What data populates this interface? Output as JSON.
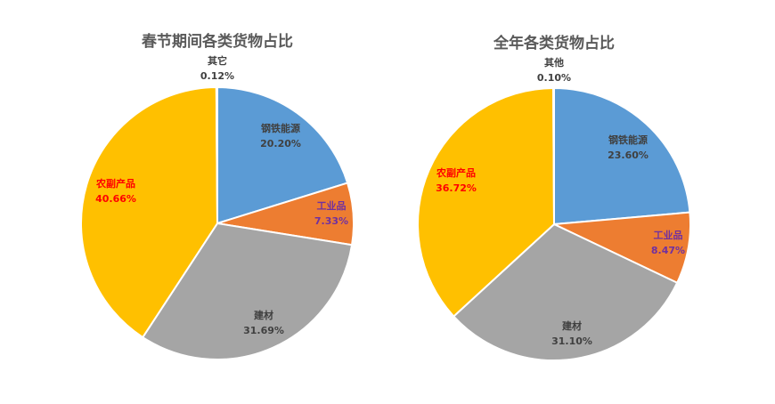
{
  "chart_data": [
    {
      "type": "pie",
      "title": "春节期间各类货物占比",
      "slices": [
        {
          "label": "钢铁能源",
          "value": 20.2,
          "display": "20.20%",
          "color": "#5B9BD5",
          "label_color": "#404040"
        },
        {
          "label": "工业品",
          "value": 7.33,
          "display": "7.33%",
          "color": "#ED7D31",
          "label_color": "#7030A0"
        },
        {
          "label": "建材",
          "value": 31.69,
          "display": "31.69%",
          "color": "#A5A5A5",
          "label_color": "#404040"
        },
        {
          "label": "农副产品",
          "value": 40.66,
          "display": "40.66%",
          "color": "#FFC000",
          "label_color": "#FF0000"
        },
        {
          "label": "其它",
          "value": 0.12,
          "display": "0.12%",
          "color": "#4472C4",
          "label_color": "#404040"
        }
      ]
    },
    {
      "type": "pie",
      "title": "全年各类货物占比",
      "slices": [
        {
          "label": "钢铁能源",
          "value": 23.6,
          "display": "23.60%",
          "color": "#5B9BD5",
          "label_color": "#404040"
        },
        {
          "label": "工业品",
          "value": 8.47,
          "display": "8.47%",
          "color": "#ED7D31",
          "label_color": "#7030A0"
        },
        {
          "label": "建材",
          "value": 31.1,
          "display": "31.10%",
          "color": "#A5A5A5",
          "label_color": "#404040"
        },
        {
          "label": "农副产品",
          "value": 36.72,
          "display": "36.72%",
          "color": "#FFC000",
          "label_color": "#FF0000"
        },
        {
          "label": "其他",
          "value": 0.1,
          "display": "0.10%",
          "color": "#4472C4",
          "label_color": "#404040"
        }
      ]
    }
  ]
}
